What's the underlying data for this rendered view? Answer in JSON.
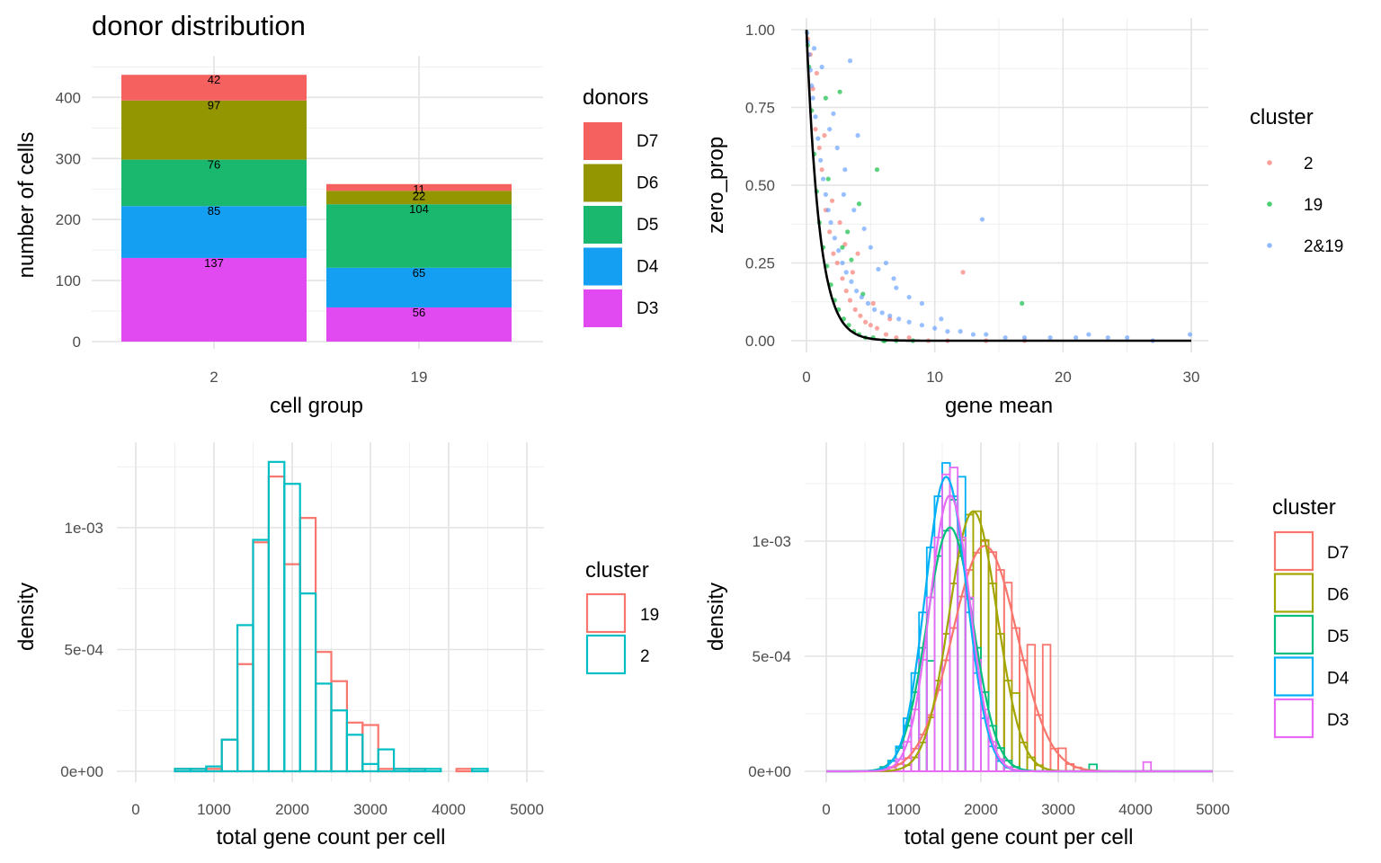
{
  "chart_data": [
    {
      "id": "p1",
      "type": "bar",
      "stacked": true,
      "title": "donor distribution",
      "xlabel": "cell group",
      "ylabel": "number of cells",
      "categories": [
        "2",
        "19"
      ],
      "ylim": [
        0,
        455
      ],
      "yticks": [
        0,
        100,
        200,
        300,
        400
      ],
      "legend_title": "donors",
      "series": [
        {
          "name": "D3",
          "color": "#E76BF3",
          "fill": "#E04AF0",
          "values": [
            137,
            56
          ]
        },
        {
          "name": "D4",
          "color": "#00B0F6",
          "fill": "#159FF2",
          "values": [
            85,
            65
          ]
        },
        {
          "name": "D5",
          "color": "#00BF7D",
          "fill": "#1AB76E",
          "values": [
            76,
            104
          ]
        },
        {
          "name": "D6",
          "color": "#A3A500",
          "fill": "#939600",
          "values": [
            97,
            22
          ]
        },
        {
          "name": "D7",
          "color": "#F8766D",
          "fill": "#F5615F",
          "values": [
            42,
            11
          ]
        }
      ]
    },
    {
      "id": "p2",
      "type": "scatter",
      "xlabel": "gene mean",
      "ylabel": "zero_prop",
      "xlim": [
        -1,
        31
      ],
      "ylim": [
        -0.03,
        1.02
      ],
      "xticks": [
        0,
        10,
        20,
        30
      ],
      "yticks": [
        0.0,
        0.25,
        0.5,
        0.75,
        1.0
      ],
      "ytick_labels": [
        "0.00",
        "0.25",
        "0.50",
        "0.75",
        "1.00"
      ],
      "legend_title": "cluster",
      "fit_curve": "exp(-x)",
      "series": [
        {
          "name": "2",
          "color": "#F8766D",
          "points": [
            [
              0.1,
              0.97
            ],
            [
              0.3,
              0.92
            ],
            [
              0.5,
              0.81
            ],
            [
              0.7,
              0.68
            ],
            [
              1.0,
              0.62
            ],
            [
              1.2,
              0.55
            ],
            [
              1.5,
              0.42
            ],
            [
              1.8,
              0.35
            ],
            [
              2.1,
              0.28
            ],
            [
              2.4,
              0.25
            ],
            [
              2.8,
              0.2
            ],
            [
              3.1,
              0.16
            ],
            [
              3.4,
              0.13
            ],
            [
              3.8,
              0.1
            ],
            [
              4.2,
              0.08
            ],
            [
              4.6,
              0.06
            ],
            [
              5.0,
              0.05
            ],
            [
              5.5,
              0.04
            ],
            [
              6.2,
              0.02
            ],
            [
              7.0,
              0.01
            ],
            [
              8.0,
              0.01
            ],
            [
              9.5,
              0.0
            ],
            [
              12.2,
              0.22
            ],
            [
              11.0,
              0.0
            ],
            [
              14.0,
              0.0
            ],
            [
              17.0,
              0.0
            ],
            [
              2.0,
              0.45
            ],
            [
              2.6,
              0.38
            ],
            [
              3.0,
              0.31
            ],
            [
              1.4,
              0.66
            ],
            [
              4.0,
              0.28
            ],
            [
              0.8,
              0.86
            ],
            [
              3.6,
              0.22
            ],
            [
              5.2,
              0.12
            ],
            [
              6.5,
              0.07
            ]
          ]
        },
        {
          "name": "19",
          "color": "#00BA38",
          "points": [
            [
              0.1,
              0.95
            ],
            [
              0.2,
              0.88
            ],
            [
              0.4,
              0.74
            ],
            [
              0.6,
              0.6
            ],
            [
              0.8,
              0.48
            ],
            [
              1.0,
              0.38
            ],
            [
              1.3,
              0.3
            ],
            [
              1.6,
              0.24
            ],
            [
              1.9,
              0.18
            ],
            [
              2.2,
              0.13
            ],
            [
              2.5,
              0.1
            ],
            [
              2.9,
              0.07
            ],
            [
              3.3,
              0.05
            ],
            [
              3.7,
              0.03
            ],
            [
              4.1,
              0.02
            ],
            [
              4.6,
              0.01
            ],
            [
              5.2,
              0.01
            ],
            [
              6.0,
              0.0
            ],
            [
              7.0,
              0.0
            ],
            [
              5.5,
              0.55
            ],
            [
              4.1,
              0.44
            ],
            [
              3.2,
              0.35
            ],
            [
              16.8,
              0.12
            ],
            [
              2.8,
              0.3
            ],
            [
              3.5,
              0.26
            ],
            [
              1.7,
              0.52
            ],
            [
              2.6,
              0.8
            ],
            [
              1.5,
              0.78
            ],
            [
              4.4,
              0.15
            ],
            [
              6.1,
              0.0
            ],
            [
              8.3,
              0.0
            ]
          ]
        },
        {
          "name": "2&19",
          "color": "#619CFF",
          "points": [
            [
              0.05,
              0.99
            ],
            [
              0.1,
              0.96
            ],
            [
              0.2,
              0.92
            ],
            [
              0.3,
              0.87
            ],
            [
              0.4,
              0.82
            ],
            [
              0.5,
              0.78
            ],
            [
              0.7,
              0.72
            ],
            [
              0.9,
              0.65
            ],
            [
              1.1,
              0.58
            ],
            [
              1.3,
              0.52
            ],
            [
              1.5,
              0.47
            ],
            [
              1.7,
              0.42
            ],
            [
              1.9,
              0.38
            ],
            [
              2.2,
              0.33
            ],
            [
              2.5,
              0.29
            ],
            [
              2.8,
              0.25
            ],
            [
              3.1,
              0.22
            ],
            [
              3.5,
              0.19
            ],
            [
              3.9,
              0.16
            ],
            [
              4.3,
              0.14
            ],
            [
              4.8,
              0.12
            ],
            [
              5.3,
              0.1
            ],
            [
              5.9,
              0.09
            ],
            [
              6.5,
              0.08
            ],
            [
              7.2,
              0.07
            ],
            [
              8.0,
              0.06
            ],
            [
              9.0,
              0.05
            ],
            [
              10.0,
              0.04
            ],
            [
              11.0,
              0.03
            ],
            [
              12.0,
              0.03
            ],
            [
              13.0,
              0.02
            ],
            [
              14.0,
              0.02
            ],
            [
              15.5,
              0.01
            ],
            [
              17.0,
              0.01
            ],
            [
              19.0,
              0.01
            ],
            [
              21.0,
              0.01
            ],
            [
              22.0,
              0.02
            ],
            [
              23.5,
              0.01
            ],
            [
              25.0,
              0.01
            ],
            [
              27.0,
              0.0
            ],
            [
              29.9,
              0.02
            ],
            [
              13.7,
              0.39
            ],
            [
              3.4,
              0.9
            ],
            [
              2.1,
              0.73
            ],
            [
              4.0,
              0.66
            ],
            [
              3.0,
              0.55
            ],
            [
              6.2,
              0.25
            ],
            [
              7.0,
              0.17
            ],
            [
              9.0,
              0.12
            ],
            [
              5.0,
              0.3
            ],
            [
              1.2,
              0.88
            ],
            [
              0.6,
              0.94
            ],
            [
              4.5,
              0.36
            ],
            [
              2.4,
              0.62
            ],
            [
              1.8,
              0.68
            ],
            [
              3.7,
              0.42
            ],
            [
              8.0,
              0.14
            ],
            [
              10.5,
              0.07
            ],
            [
              6.8,
              0.2
            ],
            [
              5.6,
              0.23
            ],
            [
              2.9,
              0.47
            ]
          ]
        }
      ]
    },
    {
      "id": "p3",
      "type": "histogram",
      "xlabel": "total gene count per cell",
      "ylabel": "density",
      "xlim": [
        -100,
        5200
      ],
      "ylim": [
        -3e-05,
        0.00132
      ],
      "xticks": [
        0,
        1000,
        2000,
        3000,
        4000,
        5000
      ],
      "yticks": [
        0,
        0.0005,
        0.001
      ],
      "ytick_labels": [
        "0e+00",
        "5e-04",
        "1e-03"
      ],
      "legend_title": "cluster",
      "bins": [
        100,
        300,
        500,
        700,
        900,
        1100,
        1300,
        1500,
        1700,
        1900,
        2100,
        2300,
        2500,
        2700,
        2900,
        3100,
        3300,
        3500,
        3700,
        3900,
        4100,
        4300,
        4500,
        4700,
        4900
      ],
      "series": [
        {
          "name": "19",
          "color": "#F8766D",
          "values": [
            0,
            0,
            1e-05,
            1e-05,
            1e-05,
            0.00013,
            0.00044,
            0.00094,
            0.00121,
            0.00085,
            0.00104,
            0.00049,
            0.00037,
            0.0002,
            0.00019,
            1e-05,
            1e-05,
            1e-05,
            0,
            0,
            1e-05,
            0,
            0,
            0
          ]
        },
        {
          "name": "2",
          "color": "#00BFC4",
          "values": [
            0,
            0,
            1e-05,
            1e-05,
            2e-05,
            0.00013,
            0.0006,
            0.00095,
            0.00127,
            0.00118,
            0.00073,
            0.00036,
            0.00025,
            0.00015,
            3e-05,
            9e-05,
            1e-05,
            1e-05,
            1e-05,
            0,
            0,
            1e-05,
            0,
            0,
            0
          ]
        }
      ]
    },
    {
      "id": "p4",
      "type": "histogram",
      "density_lines": true,
      "xlabel": "total gene count per cell",
      "ylabel": "density",
      "xlim": [
        -100,
        5200
      ],
      "ylim": [
        -3e-05,
        0.00138
      ],
      "xticks": [
        0,
        1000,
        2000,
        3000,
        4000,
        5000
      ],
      "yticks": [
        0,
        0.0005,
        0.001
      ],
      "ytick_labels": [
        "0e+00",
        "5e-04",
        "1e-03"
      ],
      "legend_title": "cluster",
      "bin_start": 0,
      "bin_width": 100,
      "series": [
        {
          "name": "D7",
          "color": "#F8766D",
          "peak": 2050,
          "sd": 420,
          "height": 0.00098,
          "bar_peaks": [
            [
              1900,
              0.00095
            ],
            [
              2000,
              0.001
            ],
            [
              2300,
              0.00082
            ],
            [
              2600,
              0.00055
            ],
            [
              2800,
              0.00055
            ],
            [
              3000,
              0.0001
            ]
          ]
        },
        {
          "name": "D6",
          "color": "#A3A500",
          "peak": 1900,
          "sd": 310,
          "height": 0.00113,
          "bar_peaks": [
            [
              1900,
              0.00113
            ],
            [
              2400,
              0.00034
            ]
          ]
        },
        {
          "name": "D5",
          "color": "#00BF7D",
          "peak": 1600,
          "sd": 300,
          "height": 0.00106,
          "bar_peaks": [
            [
              1300,
              0.00048
            ],
            [
              1600,
              0.00118
            ],
            [
              3400,
              3e-05
            ]
          ]
        },
        {
          "name": "D4",
          "color": "#00B0F6",
          "peak": 1550,
          "sd": 270,
          "height": 0.00128,
          "bar_peaks": [
            [
              1500,
              0.00134
            ],
            [
              1700,
              0.00128
            ]
          ]
        },
        {
          "name": "D3",
          "color": "#E76BF3",
          "peak": 1600,
          "sd": 260,
          "height": 0.0012,
          "bar_peaks": [
            [
              1500,
              0.00129
            ],
            [
              1600,
              0.00132
            ],
            [
              4100,
              4e-05
            ]
          ]
        }
      ]
    }
  ]
}
